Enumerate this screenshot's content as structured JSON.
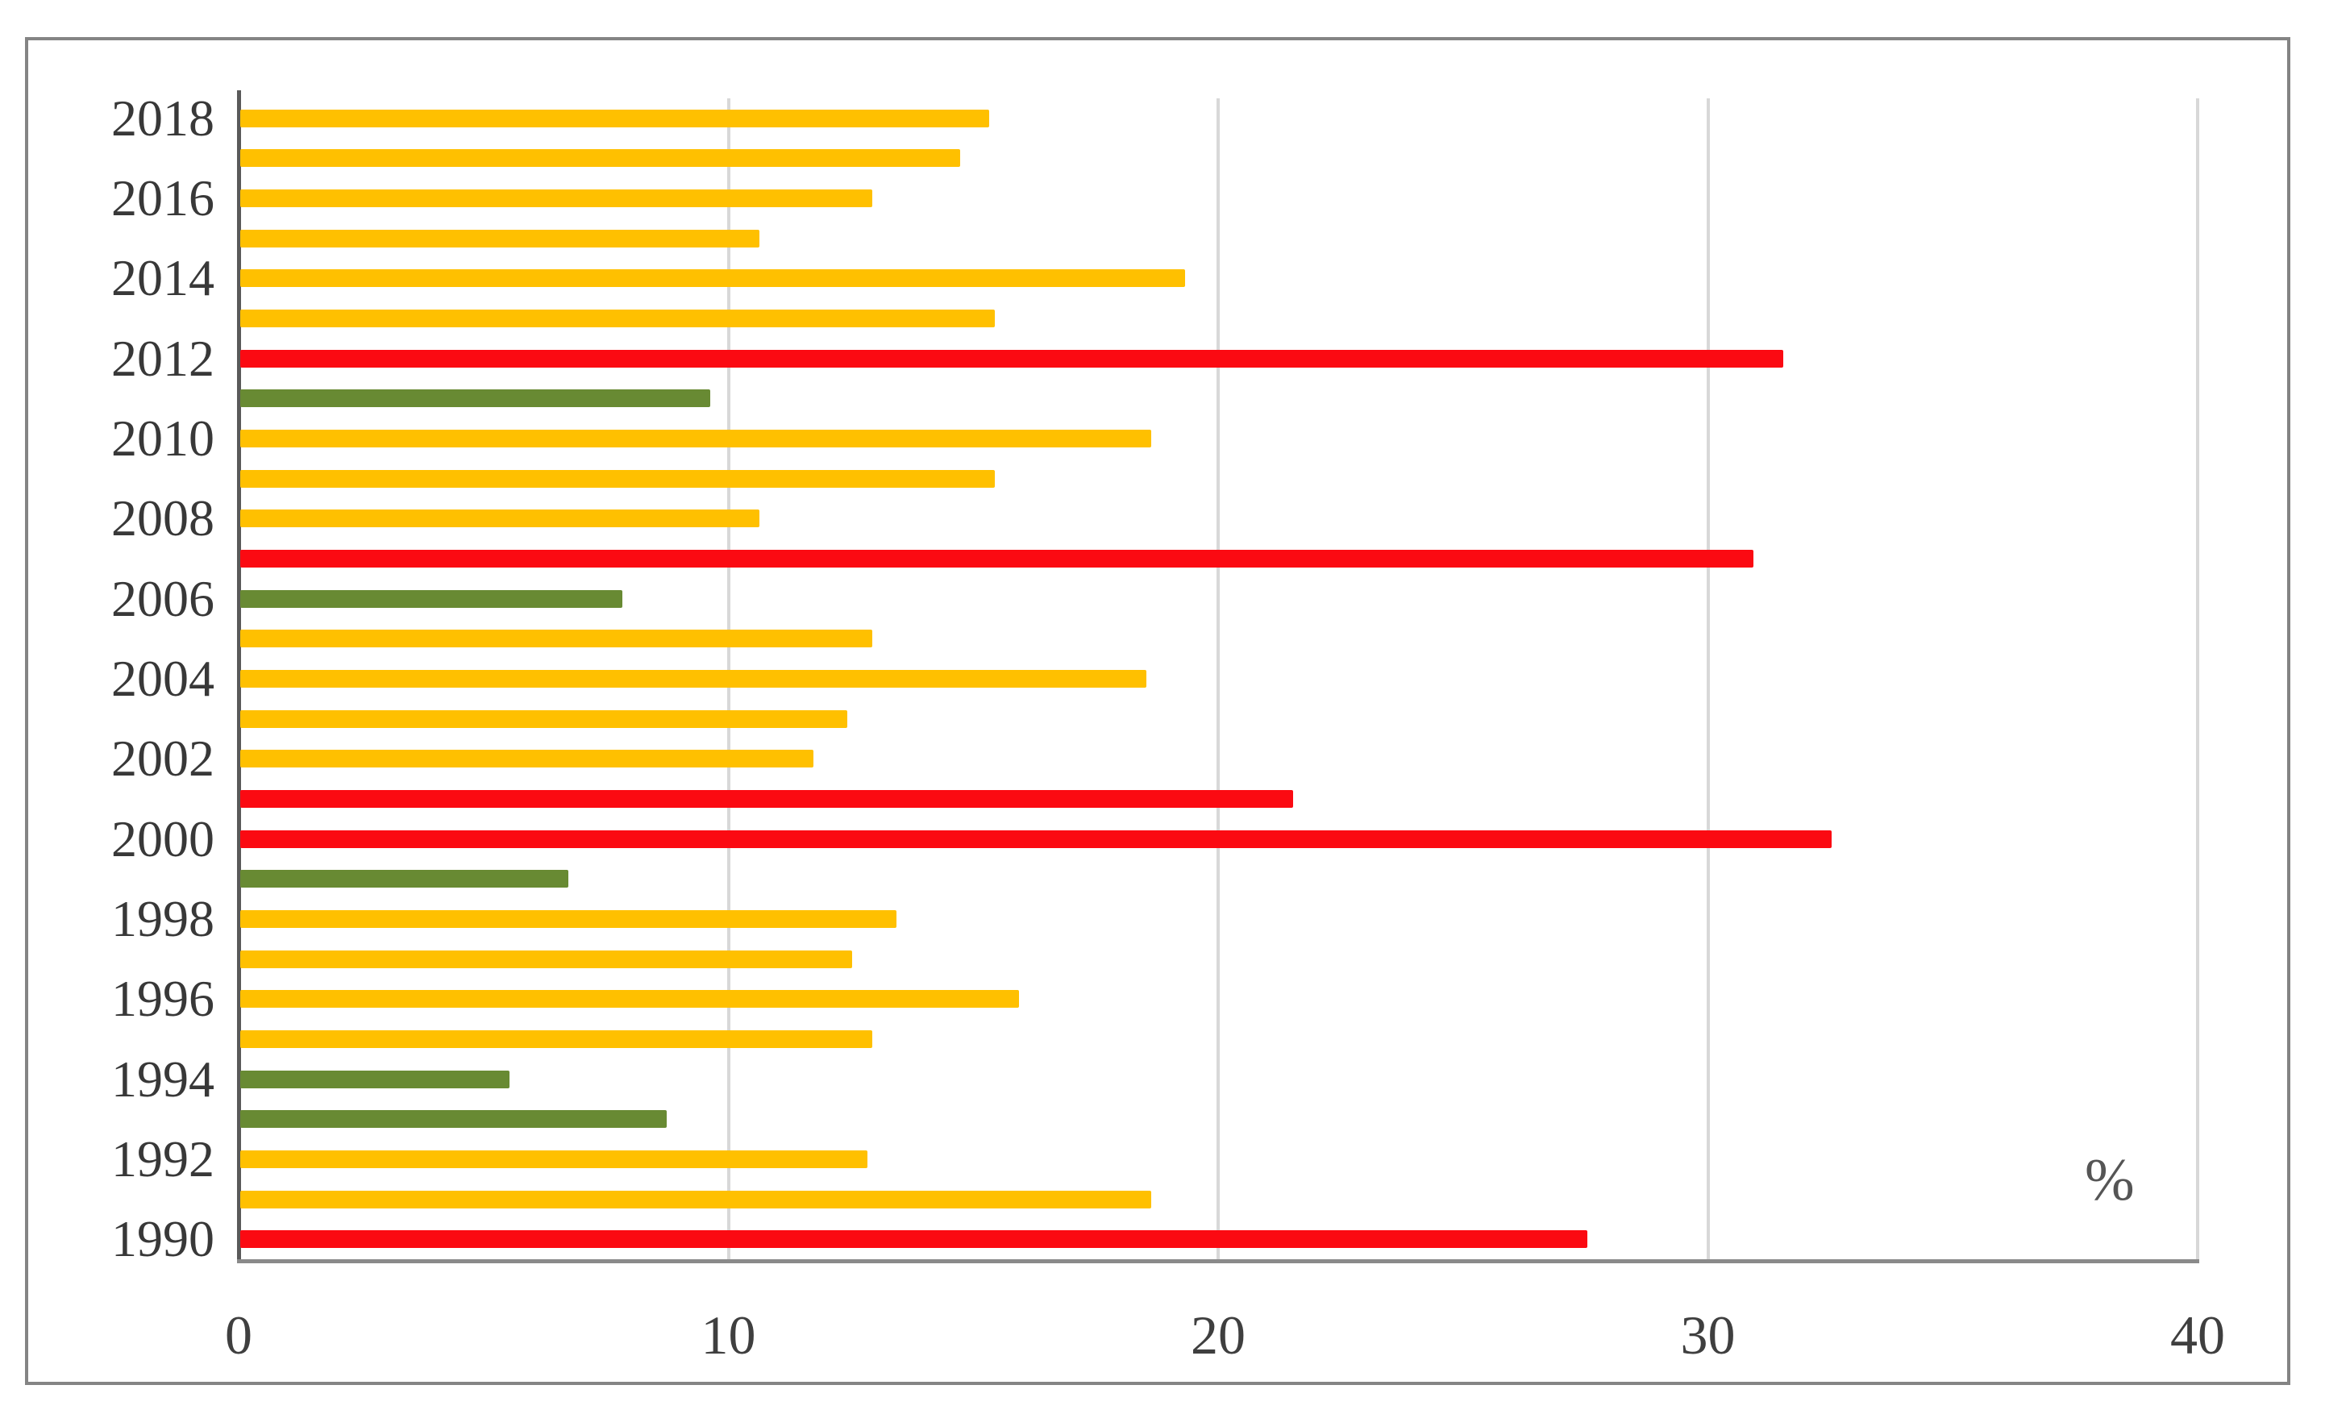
{
  "chart_data": {
    "type": "bar",
    "orientation": "horizontal",
    "title": "",
    "xlabel": "%",
    "ylabel": "",
    "xlim": [
      0,
      40
    ],
    "x_tick_labels": [
      "0",
      "10",
      "20",
      "30",
      "40"
    ],
    "x_tick_values": [
      0,
      10,
      20,
      30,
      40
    ],
    "y_tick_labels": [
      "2018",
      "2016",
      "2014",
      "2012",
      "2010",
      "2008",
      "2006",
      "2004",
      "2002",
      "2000",
      "1998",
      "1996",
      "1994",
      "1992",
      "1990"
    ],
    "grid": "vertical-only",
    "legend": "none",
    "palette": {
      "gold": "#FFC000",
      "red": "#FB0A12",
      "green": "#688A33"
    },
    "bars_top_to_bottom": [
      {
        "year": "2018",
        "value": 15.3,
        "color": "gold"
      },
      {
        "year": "2017",
        "value": 14.7,
        "color": "gold"
      },
      {
        "year": "2016",
        "value": 12.9,
        "color": "gold"
      },
      {
        "year": "2015",
        "value": 10.6,
        "color": "gold"
      },
      {
        "year": "2014",
        "value": 19.3,
        "color": "gold"
      },
      {
        "year": "2013",
        "value": 15.4,
        "color": "gold"
      },
      {
        "year": "2012",
        "value": 31.5,
        "color": "red"
      },
      {
        "year": "2011",
        "value": 9.6,
        "color": "green"
      },
      {
        "year": "2010",
        "value": 18.6,
        "color": "gold"
      },
      {
        "year": "2009",
        "value": 15.4,
        "color": "gold"
      },
      {
        "year": "2008",
        "value": 10.6,
        "color": "gold"
      },
      {
        "year": "2007",
        "value": 30.9,
        "color": "red"
      },
      {
        "year": "2006",
        "value": 7.8,
        "color": "green"
      },
      {
        "year": "2005",
        "value": 12.9,
        "color": "gold"
      },
      {
        "year": "2004",
        "value": 18.5,
        "color": "gold"
      },
      {
        "year": "2003",
        "value": 12.4,
        "color": "gold"
      },
      {
        "year": "2002",
        "value": 11.7,
        "color": "gold"
      },
      {
        "year": "2001",
        "value": 21.5,
        "color": "red"
      },
      {
        "year": "2000",
        "value": 32.5,
        "color": "red"
      },
      {
        "year": "1999",
        "value": 6.7,
        "color": "green"
      },
      {
        "year": "1998",
        "value": 13.4,
        "color": "gold"
      },
      {
        "year": "1997",
        "value": 12.5,
        "color": "gold"
      },
      {
        "year": "1996",
        "value": 15.9,
        "color": "gold"
      },
      {
        "year": "1995",
        "value": 12.9,
        "color": "gold"
      },
      {
        "year": "1994",
        "value": 5.5,
        "color": "green"
      },
      {
        "year": "1993",
        "value": 8.7,
        "color": "green"
      },
      {
        "year": "1992",
        "value": 12.8,
        "color": "gold"
      },
      {
        "year": "1991",
        "value": 18.6,
        "color": "gold"
      },
      {
        "year": "1990",
        "value": 27.5,
        "color": "red"
      }
    ]
  }
}
